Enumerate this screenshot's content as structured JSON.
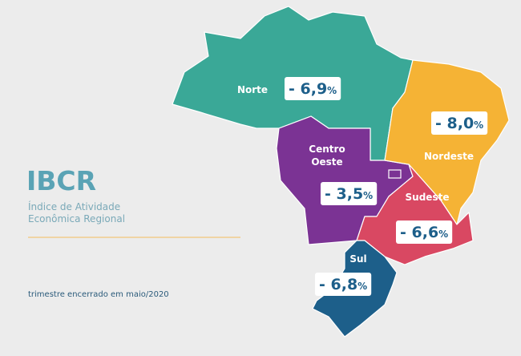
{
  "header": {
    "title": "IBCR",
    "subtitle_lines": [
      "Índice de Atividade",
      "Econômica Regional"
    ]
  },
  "note": "trimestre encerrado em maio/2020",
  "regions": [
    {
      "name": "Norte",
      "value": "- 6,9",
      "unit": "%"
    },
    {
      "name": "Nordeste",
      "value": "- 8,0",
      "unit": "%"
    },
    {
      "name": "Centro Oeste",
      "value": "- 3,5",
      "unit": "%"
    },
    {
      "name": "Sudeste",
      "value": "- 6,6",
      "unit": "%"
    },
    {
      "name": "Sul",
      "value": "- 6,8",
      "unit": "%"
    }
  ]
}
